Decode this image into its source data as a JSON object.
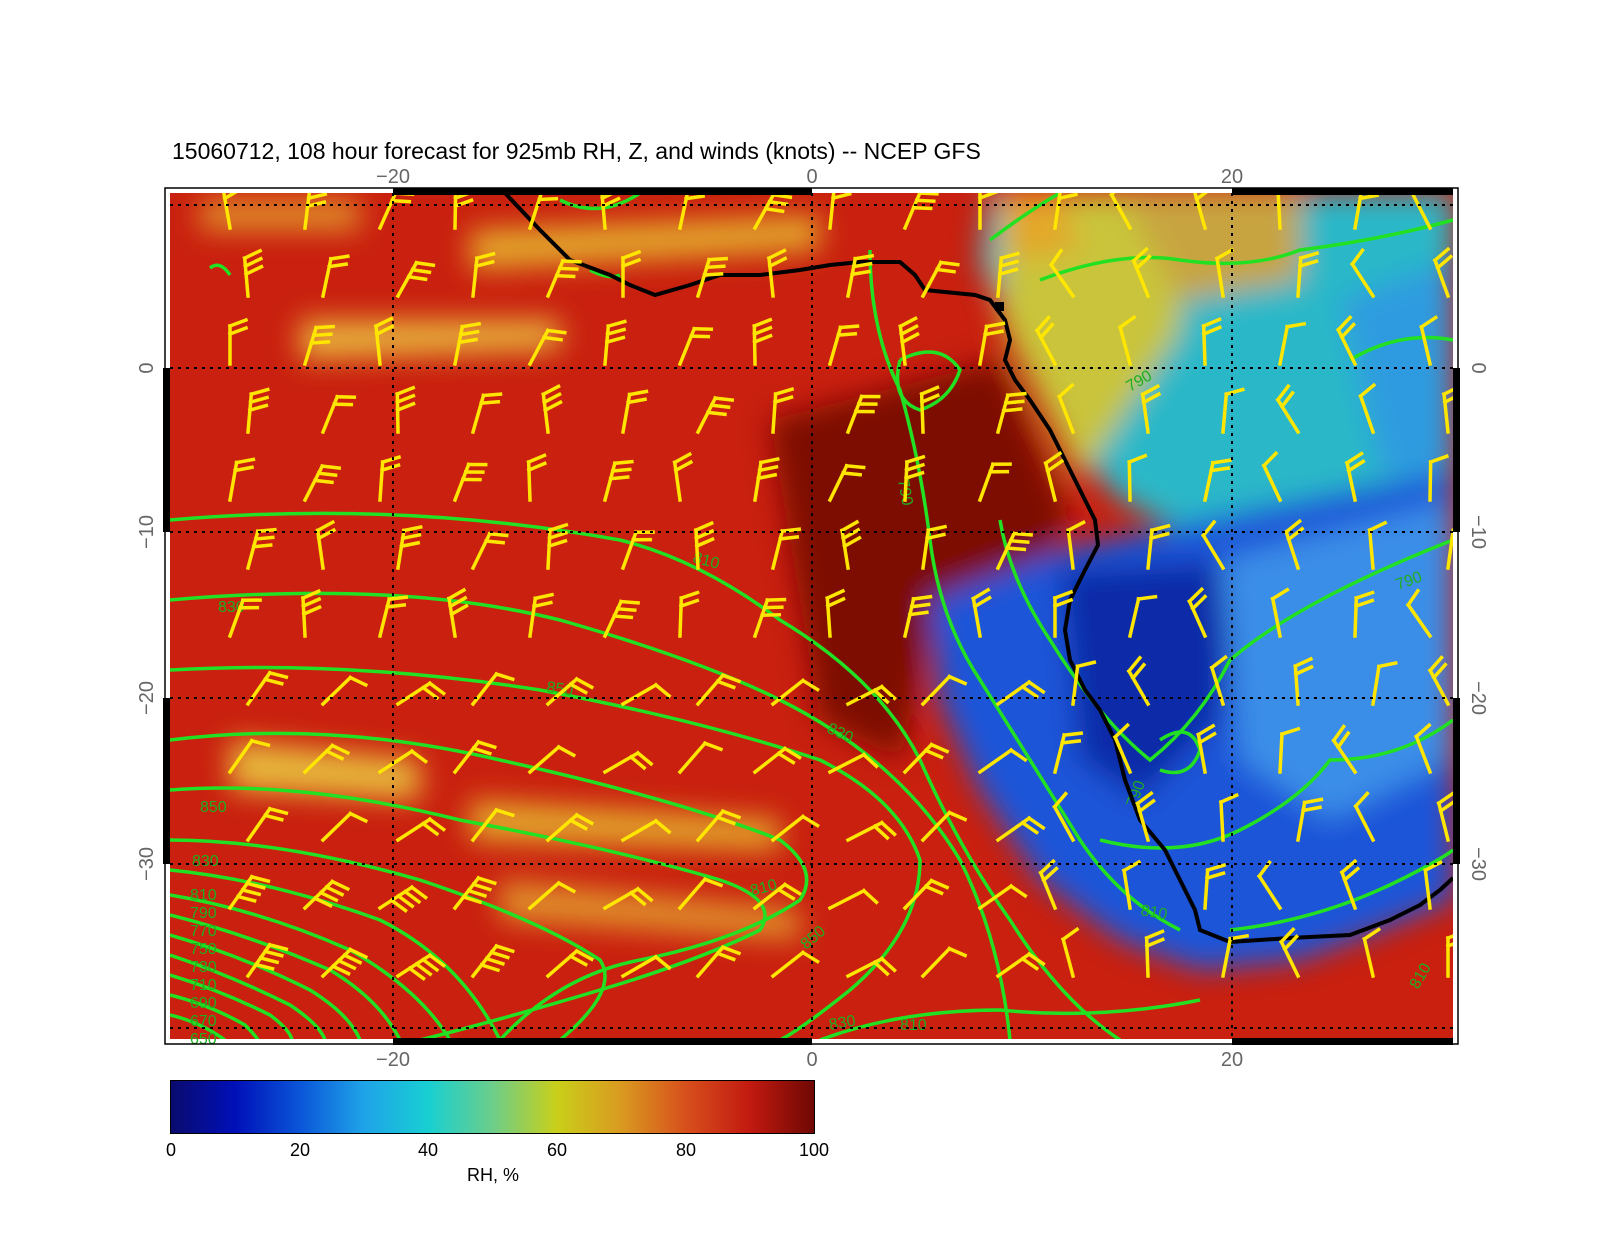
{
  "title": "15060712, 108 hour forecast for 925mb RH, Z, and winds (knots) -- NCEP GFS",
  "map": {
    "lon_ticks": [
      "−20",
      "0",
      "20"
    ],
    "lat_ticks": [
      "0",
      "−10",
      "−20",
      "−30"
    ],
    "contour_labels": [
      "810",
      "830",
      "850",
      "830",
      "810",
      "790",
      "810",
      "790",
      "850",
      "830",
      "810",
      "790",
      "770",
      "750",
      "730",
      "710",
      "690",
      "670",
      "650",
      "850",
      "830",
      "810",
      "790",
      "790",
      "810"
    ],
    "field": "RH",
    "contour_field": "Z",
    "contour_color": "#22e022",
    "barb_color": "#ffe600",
    "coast_color": "#000000"
  },
  "colorbar": {
    "ticks": [
      "0",
      "20",
      "40",
      "60",
      "80",
      "100"
    ],
    "label": "RH, %",
    "colors": [
      "#0a0b6e",
      "#0010b8",
      "#0a55d8",
      "#1fa3e8",
      "#18cfd2",
      "#6cce8a",
      "#c9cf1a",
      "#d99a20",
      "#d7501c",
      "#c21a10",
      "#6f0804"
    ]
  }
}
